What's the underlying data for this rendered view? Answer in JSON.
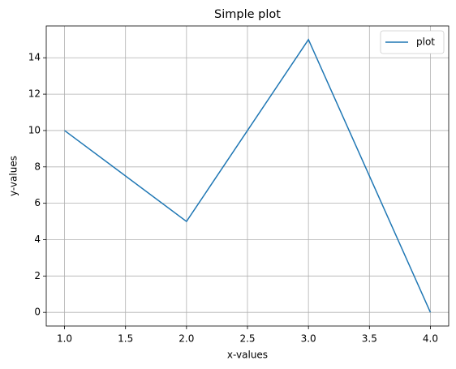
{
  "chart_data": {
    "type": "line",
    "title": "Simple plot",
    "x_label": "x-values",
    "y_label": "y-values",
    "x": [
      1,
      2,
      3,
      4
    ],
    "series": [
      {
        "name": "plot",
        "color": "#1f77b4",
        "values": [
          10,
          5,
          15,
          0
        ]
      }
    ],
    "xlim": [
      0.85,
      4.15
    ],
    "ylim": [
      -0.75,
      15.75
    ],
    "xticks": [
      {
        "value": 1,
        "label": "1.0"
      },
      {
        "value": 1.5,
        "label": "1.5"
      },
      {
        "value": 2,
        "label": "2.0"
      },
      {
        "value": 2.5,
        "label": "2.5"
      },
      {
        "value": 3,
        "label": "3.0"
      },
      {
        "value": 3.5,
        "label": "3.5"
      },
      {
        "value": 4,
        "label": "4.0"
      }
    ],
    "yticks": [
      0,
      2,
      4,
      6,
      8,
      10,
      12,
      14
    ],
    "grid": true,
    "legend": "upper right"
  }
}
